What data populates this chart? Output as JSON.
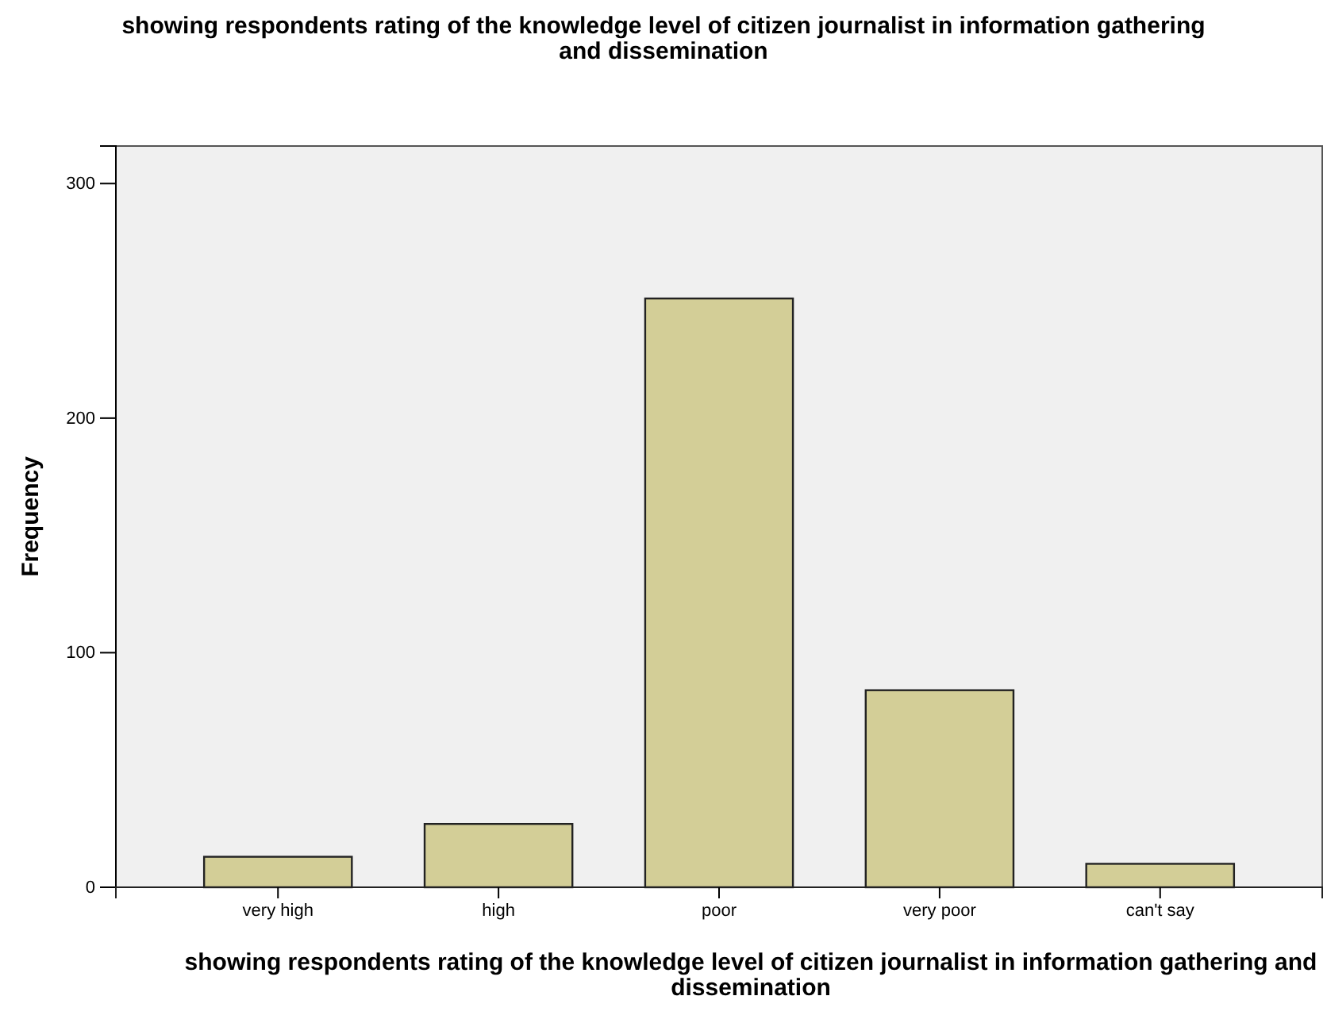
{
  "chart_data": {
    "type": "bar",
    "title": "showing respondents rating of the knowledge level of citizen journalist in information gathering and dissemination",
    "xlabel": "showing respondents rating of the knowledge level of citizen journalist in information gathering and dissemination",
    "ylabel": "Frequency",
    "categories": [
      "very high",
      "high",
      "poor",
      "very poor",
      "can't say"
    ],
    "values": [
      13,
      27,
      251,
      84,
      10
    ],
    "color": "#d3ce97",
    "ylim": [
      0,
      316
    ],
    "yticks": [
      0,
      100,
      200,
      300
    ]
  }
}
